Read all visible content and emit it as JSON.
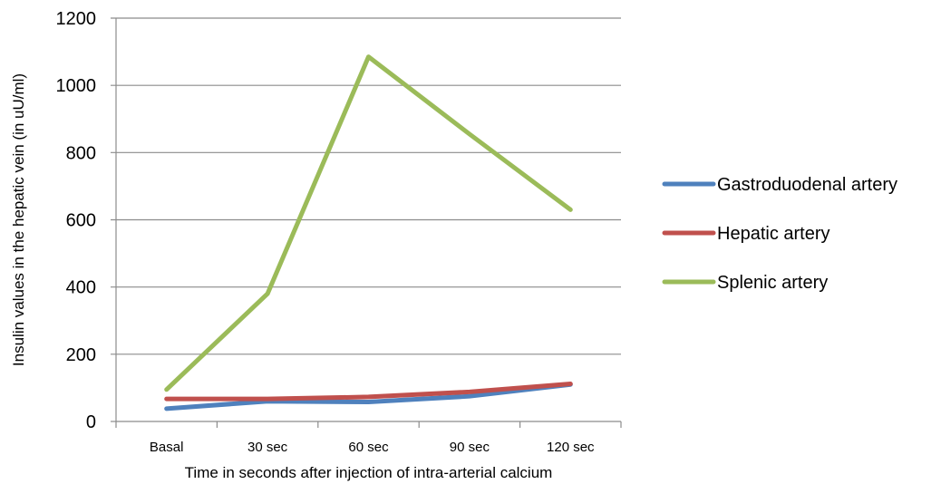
{
  "chart_data": {
    "type": "line",
    "title": "",
    "xlabel": "Time in seconds after injection of intra-arterial calcium",
    "ylabel": "Insulin values in the hepatic vein (in uU/ml)",
    "categories": [
      "Basal",
      "30 sec",
      "60 sec",
      "90 sec",
      "120 sec"
    ],
    "ylim": [
      0,
      1200
    ],
    "yticks": [
      0,
      200,
      400,
      600,
      800,
      1000,
      1200
    ],
    "grid": "horizontal",
    "legend_position": "right",
    "series": [
      {
        "name": "Gastroduodenal artery",
        "color": "#4f81bd",
        "values": [
          38,
          60,
          58,
          75,
          110
        ]
      },
      {
        "name": "Hepatic artery",
        "color": "#c0504d",
        "values": [
          67,
          67,
          73,
          88,
          112
        ]
      },
      {
        "name": "Splenic artery",
        "color": "#9bbb59",
        "values": [
          95,
          380,
          1085,
          855,
          630
        ]
      }
    ]
  }
}
